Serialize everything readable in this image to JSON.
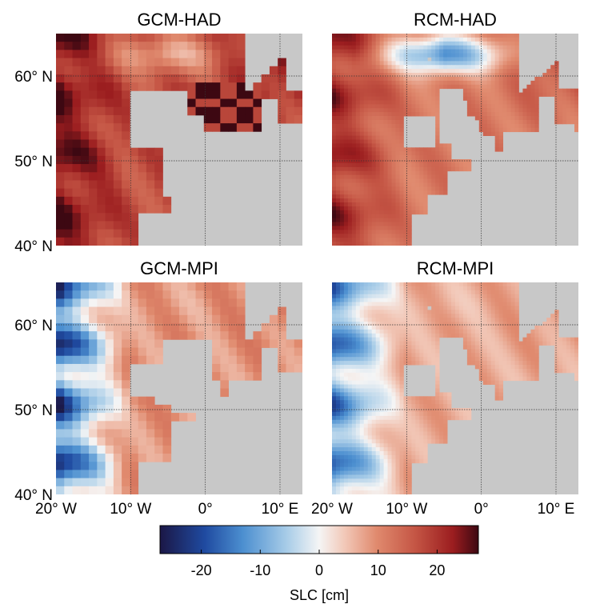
{
  "chart_data": {
    "type": "heatmap",
    "variable": "SLC",
    "colorbar": {
      "label": "SLC [cm]",
      "ticks": [
        -20,
        -10,
        0,
        10,
        20
      ],
      "range": [
        -27,
        27
      ],
      "colormap": [
        "#1b1746",
        "#1f4aa0",
        "#4c8fd0",
        "#a9cde8",
        "#f5f5f5",
        "#f2c8b8",
        "#e08a6e",
        "#c55645",
        "#9b1d1f",
        "#3d0812"
      ]
    },
    "axes": {
      "lon_range": [
        -20,
        13
      ],
      "lat_range": [
        40,
        65
      ],
      "x_ticks": [
        {
          "value": -20,
          "label": "20° W"
        },
        {
          "value": -10,
          "label": "10° W"
        },
        {
          "value": 0,
          "label": "0°"
        },
        {
          "value": 10,
          "label": "10° E"
        }
      ],
      "y_ticks": [
        {
          "value": 40,
          "label": "40° N"
        },
        {
          "value": 50,
          "label": "50° N"
        },
        {
          "value": 60,
          "label": "60° N"
        }
      ],
      "grid": true
    },
    "panels": [
      {
        "title": "GCM-HAD",
        "model": "GCM",
        "forcing": "HAD",
        "grid": "coarse",
        "typical_slc": 17,
        "west_slc": 28,
        "north_slc": 6,
        "northeast_slc": 28
      },
      {
        "title": "RCM-HAD",
        "model": "RCM",
        "forcing": "HAD",
        "grid": "fine",
        "typical_slc": 12,
        "west_slc": 25,
        "north_slc": -14,
        "northeast_slc": 20
      },
      {
        "title": "GCM-MPI",
        "model": "GCM",
        "forcing": "MPI",
        "grid": "coarse",
        "typical_slc": 9,
        "west_slc": -27,
        "north_slc": 8,
        "northeast_slc": 12
      },
      {
        "title": "RCM-MPI",
        "model": "RCM",
        "forcing": "MPI",
        "grid": "fine",
        "typical_slc": 7,
        "west_slc": -20,
        "north_slc": 6,
        "northeast_slc": 10
      }
    ]
  }
}
